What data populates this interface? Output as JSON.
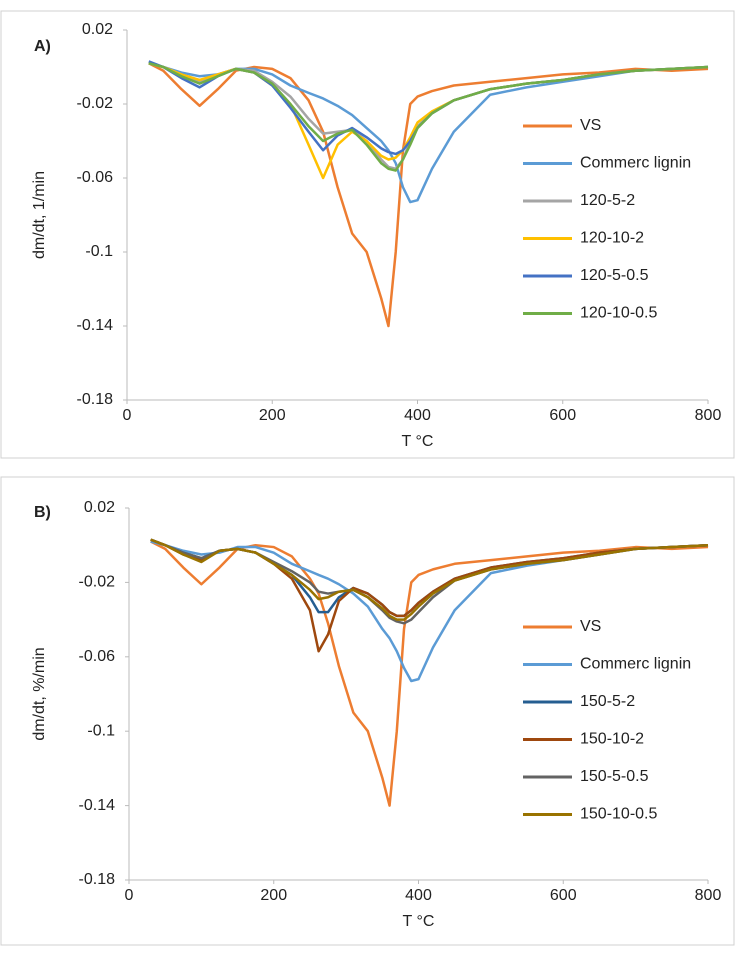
{
  "chart_data": [
    {
      "type": "line",
      "panel_label": "A)",
      "ylabel": "dm/dt, 1/min",
      "xlabel": "T °C",
      "xlim": [
        0,
        800
      ],
      "xticks": [
        0,
        200,
        400,
        600,
        800
      ],
      "ylim": [
        -0.18,
        0.02
      ],
      "yticks": [
        0.02,
        -0.02,
        -0.06,
        -0.1,
        -0.14,
        -0.18
      ],
      "legend": "right",
      "x": [
        30,
        50,
        75,
        100,
        125,
        150,
        175,
        200,
        225,
        250,
        270,
        290,
        310,
        330,
        350,
        360,
        370,
        380,
        390,
        400,
        420,
        450,
        500,
        550,
        600,
        650,
        700,
        750,
        800
      ],
      "series": [
        {
          "name": "VS",
          "color": "#ed7d31",
          "values": [
            0.002,
            -0.002,
            -0.012,
            -0.021,
            -0.012,
            -0.002,
            0,
            -0.001,
            -0.006,
            -0.018,
            -0.035,
            -0.065,
            -0.09,
            -0.1,
            -0.125,
            -0.14,
            -0.1,
            -0.045,
            -0.02,
            -0.016,
            -0.013,
            -0.01,
            -0.008,
            -0.006,
            -0.004,
            -0.003,
            -0.001,
            -0.002,
            -0.001
          ]
        },
        {
          "name": "Commerc lignin",
          "color": "#5b9bd5",
          "values": [
            0.002,
            0,
            -0.003,
            -0.005,
            -0.004,
            -0.001,
            -0.001,
            -0.004,
            -0.01,
            -0.014,
            -0.017,
            -0.021,
            -0.026,
            -0.033,
            -0.04,
            -0.045,
            -0.052,
            -0.065,
            -0.073,
            -0.072,
            -0.055,
            -0.035,
            -0.015,
            -0.011,
            -0.008,
            -0.005,
            -0.002,
            -0.001,
            0
          ]
        },
        {
          "name": "120-5-2",
          "color": "#a5a5a5",
          "values": [
            0.002,
            0,
            -0.004,
            -0.008,
            -0.004,
            -0.001,
            -0.002,
            -0.008,
            -0.016,
            -0.028,
            -0.036,
            -0.035,
            -0.034,
            -0.04,
            -0.05,
            -0.054,
            -0.055,
            -0.05,
            -0.04,
            -0.032,
            -0.025,
            -0.018,
            -0.012,
            -0.009,
            -0.007,
            -0.004,
            -0.002,
            -0.001,
            0
          ]
        },
        {
          "name": "120-10-2",
          "color": "#ffc000",
          "values": [
            0.002,
            0,
            -0.004,
            -0.007,
            -0.004,
            -0.001,
            -0.003,
            -0.01,
            -0.02,
            -0.042,
            -0.06,
            -0.042,
            -0.035,
            -0.04,
            -0.048,
            -0.05,
            -0.049,
            -0.045,
            -0.038,
            -0.03,
            -0.024,
            -0.018,
            -0.012,
            -0.009,
            -0.007,
            -0.004,
            -0.002,
            -0.001,
            0
          ]
        },
        {
          "name": "120-5-0.5",
          "color": "#4472c4",
          "values": [
            0.003,
            0,
            -0.006,
            -0.011,
            -0.005,
            -0.001,
            -0.003,
            -0.01,
            -0.022,
            -0.035,
            -0.045,
            -0.037,
            -0.033,
            -0.038,
            -0.044,
            -0.046,
            -0.047,
            -0.045,
            -0.04,
            -0.033,
            -0.025,
            -0.018,
            -0.012,
            -0.009,
            -0.007,
            -0.004,
            -0.002,
            -0.001,
            0
          ]
        },
        {
          "name": "120-10-0.5",
          "color": "#70ad47",
          "values": [
            0.002,
            0,
            -0.005,
            -0.009,
            -0.005,
            -0.001,
            -0.003,
            -0.009,
            -0.02,
            -0.032,
            -0.04,
            -0.036,
            -0.034,
            -0.042,
            -0.052,
            -0.055,
            -0.056,
            -0.05,
            -0.042,
            -0.033,
            -0.025,
            -0.018,
            -0.012,
            -0.009,
            -0.007,
            -0.004,
            -0.002,
            -0.001,
            0
          ]
        }
      ]
    },
    {
      "type": "line",
      "panel_label": "B)",
      "ylabel": "dm/dt, %/min",
      "xlabel": "T °C",
      "xlim": [
        0,
        800
      ],
      "xticks": [
        0,
        200,
        400,
        600,
        800
      ],
      "ylim": [
        -0.18,
        0.02
      ],
      "yticks": [
        0.02,
        -0.02,
        -0.06,
        -0.1,
        -0.14,
        -0.18
      ],
      "legend": "right",
      "x": [
        30,
        50,
        75,
        100,
        125,
        150,
        175,
        200,
        225,
        250,
        262,
        275,
        290,
        310,
        330,
        350,
        360,
        370,
        380,
        390,
        400,
        420,
        450,
        500,
        550,
        600,
        650,
        700,
        750,
        800
      ],
      "series": [
        {
          "name": "VS",
          "color": "#ed7d31",
          "values": [
            0.002,
            -0.002,
            -0.012,
            -0.021,
            -0.012,
            -0.002,
            0,
            -0.001,
            -0.006,
            -0.018,
            -0.026,
            -0.042,
            -0.065,
            -0.09,
            -0.1,
            -0.125,
            -0.14,
            -0.1,
            -0.045,
            -0.02,
            -0.016,
            -0.013,
            -0.01,
            -0.008,
            -0.006,
            -0.004,
            -0.003,
            -0.001,
            -0.002,
            -0.001
          ]
        },
        {
          "name": "Commerc lignin",
          "color": "#5b9bd5",
          "values": [
            0.002,
            0,
            -0.003,
            -0.005,
            -0.004,
            -0.001,
            -0.001,
            -0.004,
            -0.01,
            -0.014,
            -0.016,
            -0.018,
            -0.021,
            -0.026,
            -0.033,
            -0.045,
            -0.05,
            -0.057,
            -0.066,
            -0.073,
            -0.072,
            -0.055,
            -0.035,
            -0.015,
            -0.011,
            -0.008,
            -0.005,
            -0.002,
            -0.001,
            0
          ]
        },
        {
          "name": "150-5-2",
          "color": "#255e91",
          "values": [
            0.003,
            0,
            -0.004,
            -0.007,
            -0.003,
            -0.002,
            -0.004,
            -0.01,
            -0.016,
            -0.028,
            -0.036,
            -0.036,
            -0.028,
            -0.023,
            -0.026,
            -0.032,
            -0.036,
            -0.038,
            -0.038,
            -0.035,
            -0.031,
            -0.025,
            -0.018,
            -0.012,
            -0.009,
            -0.007,
            -0.004,
            -0.002,
            -0.001,
            0
          ]
        },
        {
          "name": "150-10-2",
          "color": "#9e480e",
          "values": [
            0.003,
            0,
            -0.005,
            -0.008,
            -0.003,
            -0.002,
            -0.004,
            -0.01,
            -0.018,
            -0.035,
            -0.057,
            -0.048,
            -0.03,
            -0.023,
            -0.026,
            -0.032,
            -0.036,
            -0.038,
            -0.038,
            -0.035,
            -0.031,
            -0.025,
            -0.018,
            -0.012,
            -0.009,
            -0.007,
            -0.004,
            -0.002,
            -0.001,
            0
          ]
        },
        {
          "name": "150-5-0.5",
          "color": "#636363",
          "values": [
            0.003,
            0,
            -0.004,
            -0.007,
            -0.003,
            -0.002,
            -0.004,
            -0.009,
            -0.014,
            -0.02,
            -0.025,
            -0.026,
            -0.025,
            -0.024,
            -0.028,
            -0.035,
            -0.039,
            -0.041,
            -0.042,
            -0.04,
            -0.036,
            -0.028,
            -0.019,
            -0.013,
            -0.01,
            -0.008,
            -0.005,
            -0.002,
            -0.001,
            0
          ]
        },
        {
          "name": "150-10-0.5",
          "color": "#997300",
          "values": [
            0.003,
            0,
            -0.005,
            -0.009,
            -0.003,
            -0.002,
            -0.004,
            -0.01,
            -0.016,
            -0.024,
            -0.029,
            -0.028,
            -0.025,
            -0.024,
            -0.028,
            -0.034,
            -0.038,
            -0.04,
            -0.04,
            -0.037,
            -0.033,
            -0.026,
            -0.019,
            -0.013,
            -0.01,
            -0.008,
            -0.005,
            -0.002,
            -0.001,
            0
          ]
        }
      ]
    }
  ]
}
